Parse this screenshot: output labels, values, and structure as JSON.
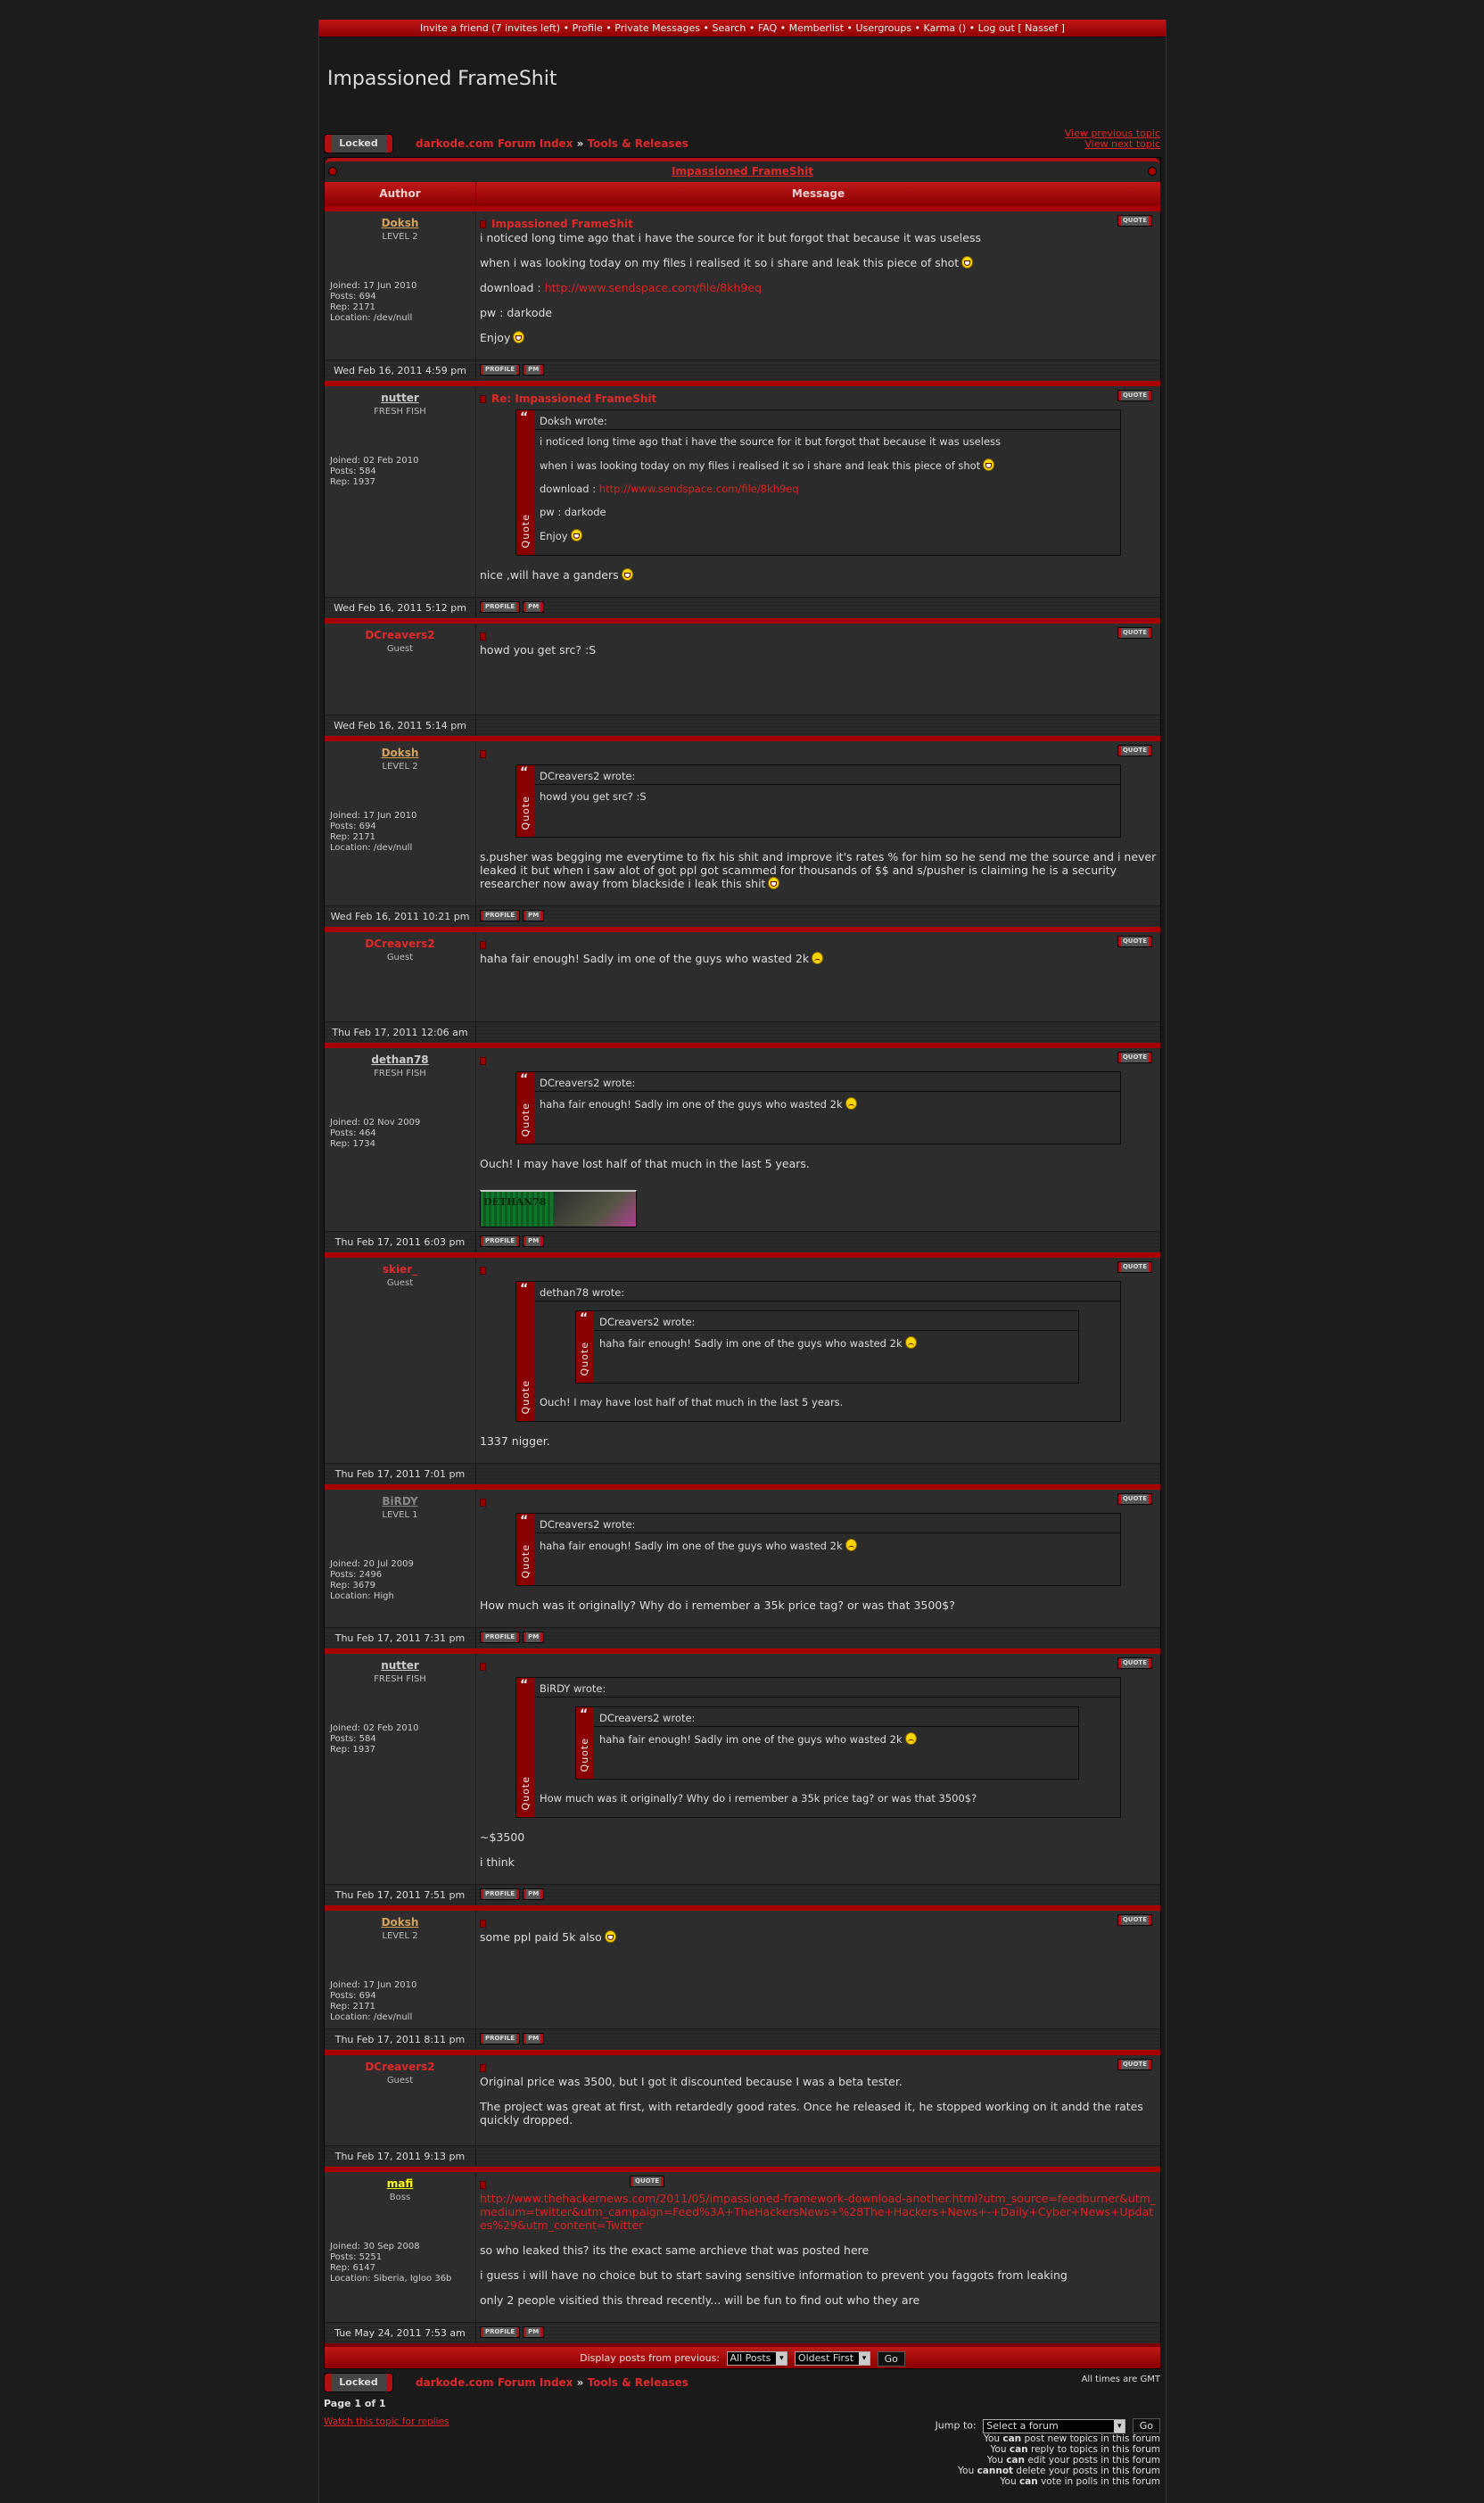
{
  "nav": {
    "items": [
      "Invite a friend (7 invites left)",
      "Profile",
      "Private Messages",
      "Search",
      "FAQ",
      "Memberlist",
      "Usergroups",
      "Karma ()",
      "Log out [ Nassef ]"
    ]
  },
  "site_title": "Impassioned FrameShit",
  "locked_label": "Locked",
  "breadcrumb": {
    "index": "darkode.com Forum Index",
    "sep": "»",
    "forum": "Tools & Releases"
  },
  "view_previous": "View previous topic",
  "view_next": "View next topic",
  "topic_title": "Impassioned FrameShit",
  "columns": {
    "author": "Author",
    "message": "Message"
  },
  "buttons": {
    "quote": "QUOTE",
    "profile": "PROFILE",
    "pm": "PM"
  },
  "quote_label": "Quote",
  "colors": {
    "accent": "#a80000",
    "link": "#e02828",
    "bg": "#1a1a1a",
    "post_bg": "#2d2d2d"
  },
  "posts": [
    {
      "author": "Doksh",
      "author_color": "#d4a25a",
      "rank": "LEVEL 2",
      "stats": [
        "Joined: 17 Jun 2010",
        "Posts: 694",
        "Rep: 2171",
        "Location: /dev/null"
      ],
      "title": "Impassioned FrameShit",
      "date": "Wed Feb 16, 2011 4:59 pm",
      "has_profile": true,
      "content": [
        {
          "text": "i noticed long time ago that i have the source for it but forgot that because it was useless"
        },
        {
          "text": "when i was looking today on my files i realised it so i share and leak this piece of shot",
          "smiley": "grin"
        },
        {
          "text": "download : ",
          "link": "http://www.sendspace.com/file/8kh9eq"
        },
        {
          "text": "pw : darkode"
        },
        {
          "text": "Enjoy",
          "smiley": "tongue"
        }
      ]
    },
    {
      "author": "nutter",
      "author_color": "#cccccc",
      "rank": "FRESH FISH",
      "stats": [
        "Joined: 02 Feb 2010",
        "Posts: 584",
        "Rep: 1937"
      ],
      "title": "Re: Impassioned FrameShit",
      "date": "Wed Feb 16, 2011 5:12 pm",
      "has_profile": true,
      "content": [
        {
          "quote": {
            "author": "Doksh wrote:",
            "content": [
              {
                "text": "i noticed long time ago that i have the source for it but forgot that because it was useless"
              },
              {
                "text": "when i was looking today on my files i realised it so i share and leak this piece of shot",
                "smiley": "grin"
              },
              {
                "text": "download : ",
                "link": "http://www.sendspace.com/file/8kh9eq"
              },
              {
                "text": "pw : darkode"
              },
              {
                "text": "Enjoy",
                "smiley": "tongue"
              }
            ]
          }
        },
        {
          "text": "nice ,will have a ganders",
          "smiley": "grin"
        }
      ]
    },
    {
      "author": "DCreavers2",
      "author_color": "#e0282a",
      "guest": true,
      "rank": "Guest",
      "stats": [],
      "title": "",
      "date": "Wed Feb 16, 2011 5:14 pm",
      "has_profile": false,
      "content": [
        {
          "text": "howd you get src? :S"
        }
      ]
    },
    {
      "author": "Doksh",
      "author_color": "#d4a25a",
      "rank": "LEVEL 2",
      "stats": [
        "Joined: 17 Jun 2010",
        "Posts: 694",
        "Rep: 2171",
        "Location: /dev/null"
      ],
      "title": "",
      "date": "Wed Feb 16, 2011 10:21 pm",
      "has_profile": true,
      "content": [
        {
          "quote": {
            "author": "DCreavers2 wrote:",
            "content": [
              {
                "text": "howd you get src? :S"
              }
            ]
          }
        },
        {
          "text": "s.pusher was begging me everytime to fix his shit and improve it's rates % for him so he send me the source and i never leaked it but when i saw alot of got ppl got scammed for thousands of $$ and s/pusher is claiming he is a security researcher now away from blackside i leak this shit",
          "smiley": "grin"
        }
      ]
    },
    {
      "author": "DCreavers2",
      "author_color": "#e0282a",
      "guest": true,
      "rank": "Guest",
      "stats": [],
      "title": "",
      "date": "Thu Feb 17, 2011 12:06 am",
      "has_profile": false,
      "content": [
        {
          "text": "haha fair enough! Sadly im one of the guys who wasted 2k",
          "smiley": "sad"
        }
      ]
    },
    {
      "author": "dethan78",
      "author_color": "#cccccc",
      "rank": "FRESH FISH",
      "stats": [
        "Joined: 02 Nov 2009",
        "Posts: 464",
        "Rep: 1734"
      ],
      "title": "",
      "date": "Thu Feb 17, 2011 6:03 pm",
      "has_profile": true,
      "signature": "DETHAN78",
      "content": [
        {
          "quote": {
            "author": "DCreavers2 wrote:",
            "content": [
              {
                "text": "haha fair enough! Sadly im one of the guys who wasted 2k",
                "smiley": "sad"
              }
            ]
          }
        },
        {
          "text": "Ouch! I may have lost half of that much in the last 5 years."
        }
      ]
    },
    {
      "author": "skier_",
      "author_color": "#e0282a",
      "guest": true,
      "rank": "Guest",
      "stats": [],
      "title": "",
      "date": "Thu Feb 17, 2011 7:01 pm",
      "has_profile": false,
      "content": [
        {
          "quote": {
            "author": "dethan78 wrote:",
            "content": [
              {
                "quote": {
                  "author": "DCreavers2 wrote:",
                  "content": [
                    {
                      "text": "haha fair enough! Sadly im one of the guys who wasted 2k",
                      "smiley": "sad"
                    }
                  ]
                }
              },
              {
                "text": "Ouch! I may have lost half of that much in the last 5 years."
              }
            ]
          }
        },
        {
          "text": "1337 nigger."
        }
      ]
    },
    {
      "author": "BiRDY",
      "author_color": "#888888",
      "rank": "LEVEL 1",
      "stats": [
        "Joined: 20 Jul 2009",
        "Posts: 2496",
        "Rep: 3679",
        "Location: High"
      ],
      "title": "",
      "date": "Thu Feb 17, 2011 7:31 pm",
      "has_profile": true,
      "content": [
        {
          "quote": {
            "author": "DCreavers2 wrote:",
            "content": [
              {
                "text": "haha fair enough! Sadly im one of the guys who wasted 2k",
                "smiley": "sad"
              }
            ]
          }
        },
        {
          "text": "How much was it originally? Why do i remember a 35k price tag? or was that 3500$?"
        }
      ]
    },
    {
      "author": "nutter",
      "author_color": "#cccccc",
      "rank": "FRESH FISH",
      "stats": [
        "Joined: 02 Feb 2010",
        "Posts: 584",
        "Rep: 1937"
      ],
      "title": "",
      "date": "Thu Feb 17, 2011 7:51 pm",
      "has_profile": true,
      "content": [
        {
          "quote": {
            "author": "BiRDY wrote:",
            "content": [
              {
                "quote": {
                  "author": "DCreavers2 wrote:",
                  "content": [
                    {
                      "text": "haha fair enough! Sadly im one of the guys who wasted 2k",
                      "smiley": "sad"
                    }
                  ]
                }
              },
              {
                "text": "How much was it originally? Why do i remember a 35k price tag? or was that 3500$?"
              }
            ]
          }
        },
        {
          "text": "~$3500"
        },
        {
          "text": "i think"
        }
      ]
    },
    {
      "author": "Doksh",
      "author_color": "#d4a25a",
      "rank": "LEVEL 2",
      "stats": [
        "Joined: 17 Jun 2010",
        "Posts: 694",
        "Rep: 2171",
        "Location: /dev/null"
      ],
      "title": "",
      "date": "Thu Feb 17, 2011 8:11 pm",
      "has_profile": true,
      "content": [
        {
          "text": "some ppl paid 5k also",
          "smiley": "grin"
        }
      ]
    },
    {
      "author": "DCreavers2",
      "author_color": "#e0282a",
      "guest": true,
      "rank": "Guest",
      "stats": [],
      "title": "",
      "date": "Thu Feb 17, 2011 9:13 pm",
      "has_profile": false,
      "content": [
        {
          "text": "Original price was 3500, but I got it discounted because I was a beta tester."
        },
        {
          "text": "The project was great at first, with retardedly good rates. Once he released it, he stopped working on it andd the rates quickly dropped."
        }
      ]
    },
    {
      "author": "mafi",
      "author_color": "#ffff00",
      "rank": "Boss",
      "stats": [
        "Joined: 30 Sep 2008",
        "Posts: 5251",
        "Rep: 6147",
        "Location: Siberia, Igloo 36b"
      ],
      "title": "",
      "date": "Tue May 24, 2011 7:53 am",
      "has_profile": true,
      "quote_btn_left": true,
      "content": [
        {
          "text": "",
          "link": "http://www.thehackernews.com/2011/05/impassioned-framework-download-another.html?utm_source=feedburner&utm_medium=twitter&utm_campaign=Feed%3A+TheHackersNews+%28The+Hackers+News+-+Daily+Cyber+News+Updates%29&utm_content=Twitter"
        },
        {
          "text": "so who leaked this? its the exact same archieve that was posted here"
        },
        {
          "text": "i guess i will have no choice but to start saving sensitive information to prevent you faggots from leaking"
        },
        {
          "text": "only 2 people visitied this thread recently... will be fun to find out who they are"
        }
      ]
    }
  ],
  "display": {
    "label": "Display posts from previous:",
    "range": "All Posts",
    "order": "Oldest First",
    "go": "Go"
  },
  "timezone": "All times are GMT",
  "page_of": "Page 1 of 1",
  "watch_topic": "Watch this topic for replies",
  "jump": {
    "label": "Jump to:",
    "value": "Select a forum",
    "go": "Go"
  },
  "permissions": [
    {
      "pre": "You ",
      "b": "can",
      "post": " post new topics in this forum"
    },
    {
      "pre": "You ",
      "b": "can",
      "post": " reply to topics in this forum"
    },
    {
      "pre": "You ",
      "b": "can",
      "post": " edit your posts in this forum"
    },
    {
      "pre": "You ",
      "b": "cannot",
      "post": " delete your posts in this forum"
    },
    {
      "pre": "You ",
      "b": "can",
      "post": " vote in polls in this forum"
    }
  ]
}
